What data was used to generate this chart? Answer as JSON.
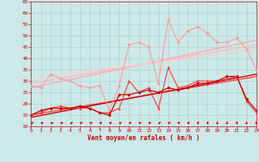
{
  "xlabel": "Vent moyen/en rafales ( km/h )",
  "xlim": [
    0,
    23
  ],
  "ylim": [
    10,
    65
  ],
  "yticks": [
    10,
    15,
    20,
    25,
    30,
    35,
    40,
    45,
    50,
    55,
    60,
    65
  ],
  "xticks": [
    0,
    1,
    2,
    3,
    4,
    5,
    6,
    7,
    8,
    9,
    10,
    11,
    12,
    13,
    14,
    15,
    16,
    17,
    18,
    19,
    20,
    21,
    22,
    23
  ],
  "background_color": "#cce8e8",
  "grid_color": "#aacccc",
  "series": [
    {
      "name": "rafales_pink_zigzag",
      "x": [
        0,
        1,
        2,
        3,
        4,
        5,
        6,
        7,
        8,
        9,
        10,
        11,
        12,
        13,
        14,
        15,
        16,
        17,
        18,
        19,
        20,
        21,
        22,
        23
      ],
      "y": [
        28,
        27,
        33,
        31,
        30,
        28,
        27,
        28,
        17,
        28,
        46,
        47,
        45,
        29,
        57,
        47,
        52,
        54,
        51,
        47,
        47,
        49,
        44,
        35
      ],
      "color": "#ff9999",
      "linewidth": 0.8,
      "marker": "D",
      "markersize": 1.8,
      "zorder": 3
    },
    {
      "name": "trend_pink1",
      "x": [
        0,
        23
      ],
      "y": [
        27,
        48
      ],
      "color": "#ffaaaa",
      "linewidth": 1.0,
      "marker": null,
      "markersize": 0,
      "zorder": 2
    },
    {
      "name": "trend_pink2",
      "x": [
        0,
        23
      ],
      "y": [
        29,
        46
      ],
      "color": "#ffbbbb",
      "linewidth": 1.0,
      "marker": null,
      "markersize": 0,
      "zorder": 2
    },
    {
      "name": "trend_pink3",
      "x": [
        0,
        23
      ],
      "y": [
        31,
        44
      ],
      "color": "#ffcccc",
      "linewidth": 1.0,
      "marker": null,
      "markersize": 0,
      "zorder": 2
    },
    {
      "name": "rafales_red_zigzag",
      "x": [
        0,
        1,
        2,
        3,
        4,
        5,
        6,
        7,
        8,
        9,
        10,
        11,
        12,
        13,
        14,
        15,
        16,
        17,
        18,
        19,
        20,
        21,
        22,
        23
      ],
      "y": [
        15,
        16,
        18,
        19,
        18,
        18,
        18,
        16,
        16,
        18,
        30,
        25,
        27,
        18,
        36,
        27,
        28,
        30,
        30,
        30,
        31,
        32,
        21,
        16
      ],
      "color": "#ff3333",
      "linewidth": 0.8,
      "marker": "^",
      "markersize": 2.0,
      "zorder": 4
    },
    {
      "name": "vent_moyen_zigzag",
      "x": [
        0,
        1,
        2,
        3,
        4,
        5,
        6,
        7,
        8,
        9,
        10,
        11,
        12,
        13,
        14,
        15,
        16,
        17,
        18,
        19,
        20,
        21,
        22,
        23
      ],
      "y": [
        15,
        17,
        18,
        18,
        18,
        19,
        18,
        16,
        15,
        24,
        24,
        25,
        26,
        25,
        27,
        26,
        27,
        29,
        29,
        30,
        32,
        32,
        22,
        17
      ],
      "color": "#cc0000",
      "linewidth": 0.9,
      "marker": "D",
      "markersize": 1.8,
      "zorder": 5
    },
    {
      "name": "trend_red1",
      "x": [
        0,
        23
      ],
      "y": [
        15,
        32
      ],
      "color": "#ff4444",
      "linewidth": 1.0,
      "marker": null,
      "markersize": 0,
      "zorder": 2
    },
    {
      "name": "trend_red2",
      "x": [
        0,
        23
      ],
      "y": [
        14,
        33
      ],
      "color": "#cc0000",
      "linewidth": 1.0,
      "marker": null,
      "markersize": 0,
      "zorder": 2
    }
  ],
  "wind_arrows": {
    "x": [
      0,
      1,
      2,
      3,
      4,
      5,
      6,
      7,
      8,
      9,
      10,
      11,
      12,
      13,
      14,
      15,
      16,
      17,
      18,
      19,
      20,
      21,
      22,
      23
    ],
    "y_base": 11.2,
    "angles_deg": [
      45,
      50,
      50,
      50,
      50,
      45,
      45,
      45,
      45,
      45,
      45,
      45,
      45,
      45,
      40,
      35,
      30,
      20,
      10,
      5,
      5,
      5,
      355,
      350
    ],
    "color": "#cc0000"
  }
}
